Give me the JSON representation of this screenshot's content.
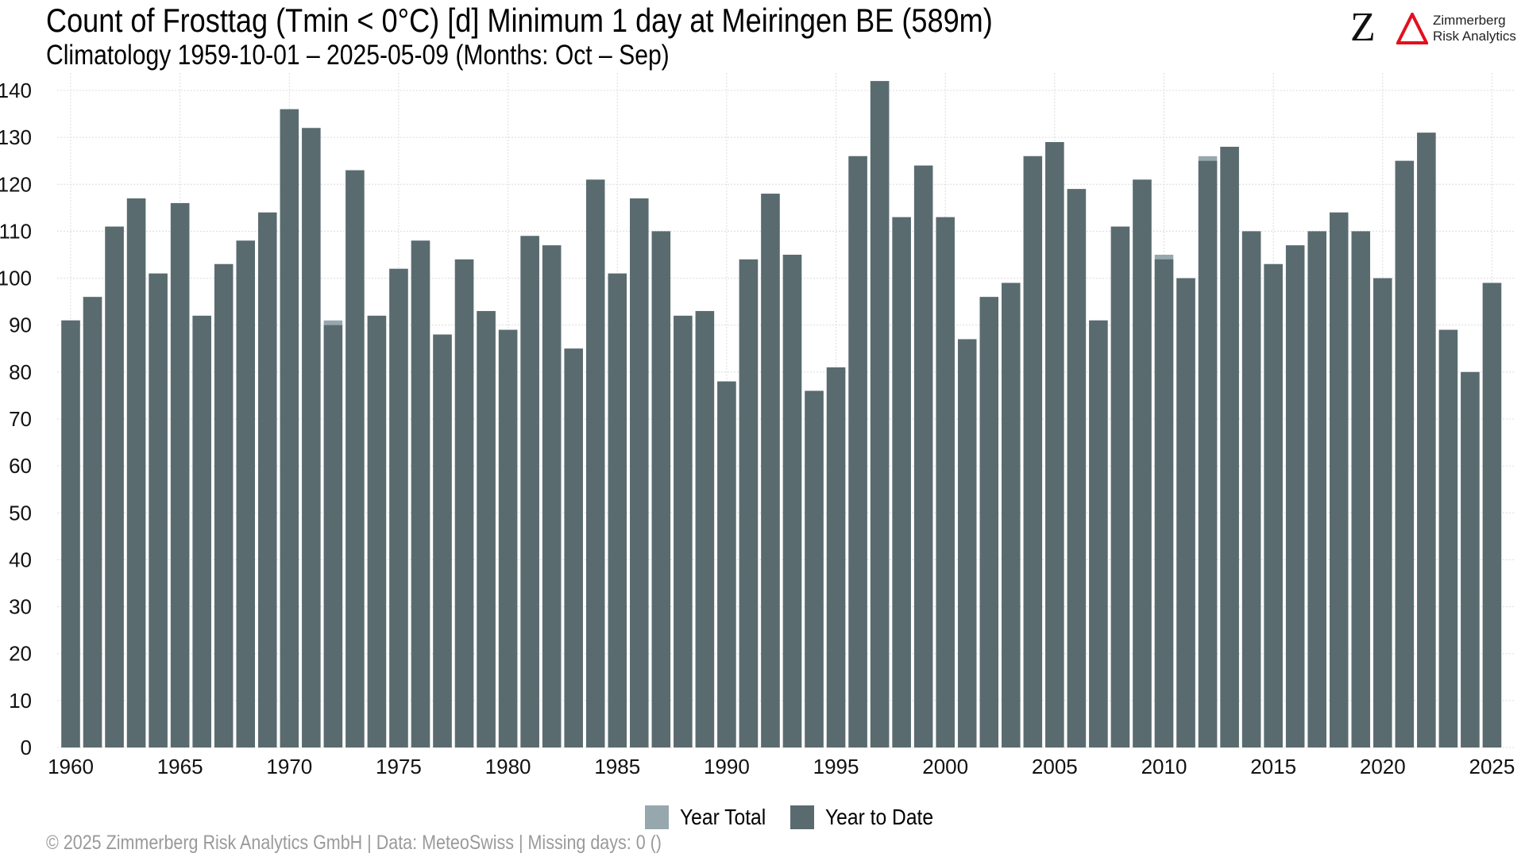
{
  "header": {
    "title": "Count of Frosttag (Tmin < 0°C) [d] Minimum 1 day at Meiringen  BE (589m)",
    "subtitle": "Climatology 1959-10-01 – 2025-05-09 (Months: Oct – Sep)"
  },
  "logo": {
    "mark": "Z",
    "icon": "delta-icon",
    "name_line1": "Zimmerberg",
    "name_line2": "Risk Analytics",
    "accent_color": "#e3101c"
  },
  "legend": {
    "items": [
      {
        "label": "Year Total",
        "color": "#96a8ae"
      },
      {
        "label": "Year to Date",
        "color": "#5a6b70"
      }
    ]
  },
  "footer": {
    "text": "©  2025 Zimmerberg Risk Analytics GmbH | Data: MeteoSwiss | Missing days: 0 ()"
  },
  "chart_data": {
    "type": "bar",
    "title": "Count of Frosttag (Tmin < 0°C) [d] Minimum 1 day at Meiringen  BE (589m)",
    "subtitle": "Climatology 1959-10-01 – 2025-05-09 (Months: Oct – Sep)",
    "xlabel": "",
    "ylabel": "",
    "ylim": [
      0,
      142
    ],
    "y_ticks": [
      0,
      10,
      20,
      30,
      40,
      50,
      60,
      70,
      80,
      90,
      100,
      110,
      120,
      130,
      140
    ],
    "x_ticks": [
      1960,
      1965,
      1970,
      1975,
      1980,
      1985,
      1990,
      1995,
      2000,
      2005,
      2010,
      2015,
      2020,
      2025
    ],
    "grid": true,
    "legend_position": "bottom",
    "categories": [
      1960,
      1961,
      1962,
      1963,
      1964,
      1965,
      1966,
      1967,
      1968,
      1969,
      1970,
      1971,
      1972,
      1973,
      1974,
      1975,
      1976,
      1977,
      1978,
      1979,
      1980,
      1981,
      1982,
      1983,
      1984,
      1985,
      1986,
      1987,
      1988,
      1989,
      1990,
      1991,
      1992,
      1993,
      1994,
      1995,
      1996,
      1997,
      1998,
      1999,
      2000,
      2001,
      2002,
      2003,
      2004,
      2005,
      2006,
      2007,
      2008,
      2009,
      2010,
      2011,
      2012,
      2013,
      2014,
      2015,
      2016,
      2017,
      2018,
      2019,
      2020,
      2021,
      2022,
      2023,
      2024,
      2025
    ],
    "series": [
      {
        "name": "Year Total",
        "color": "#96a8ae",
        "values": [
          91,
          96,
          111,
          117,
          101,
          116,
          92,
          103,
          108,
          114,
          136,
          132,
          91,
          123,
          92,
          102,
          108,
          88,
          104,
          93,
          89,
          109,
          107,
          85,
          121,
          101,
          117,
          110,
          92,
          93,
          78,
          104,
          118,
          105,
          76,
          81,
          126,
          142,
          113,
          124,
          113,
          87,
          96,
          99,
          126,
          129,
          119,
          91,
          111,
          121,
          105,
          100,
          126,
          128,
          110,
          103,
          107,
          110,
          114,
          110,
          100,
          125,
          131,
          89,
          80,
          99
        ]
      },
      {
        "name": "Year to Date",
        "color": "#5a6b70",
        "values": [
          91,
          96,
          111,
          117,
          101,
          116,
          92,
          103,
          108,
          114,
          136,
          132,
          90,
          123,
          92,
          102,
          108,
          88,
          104,
          93,
          89,
          109,
          107,
          85,
          121,
          101,
          117,
          110,
          92,
          93,
          78,
          104,
          118,
          105,
          76,
          81,
          126,
          142,
          113,
          124,
          113,
          87,
          96,
          99,
          126,
          129,
          119,
          91,
          111,
          121,
          104,
          100,
          125,
          128,
          110,
          103,
          107,
          110,
          114,
          110,
          100,
          125,
          131,
          89,
          80,
          99
        ]
      }
    ]
  }
}
